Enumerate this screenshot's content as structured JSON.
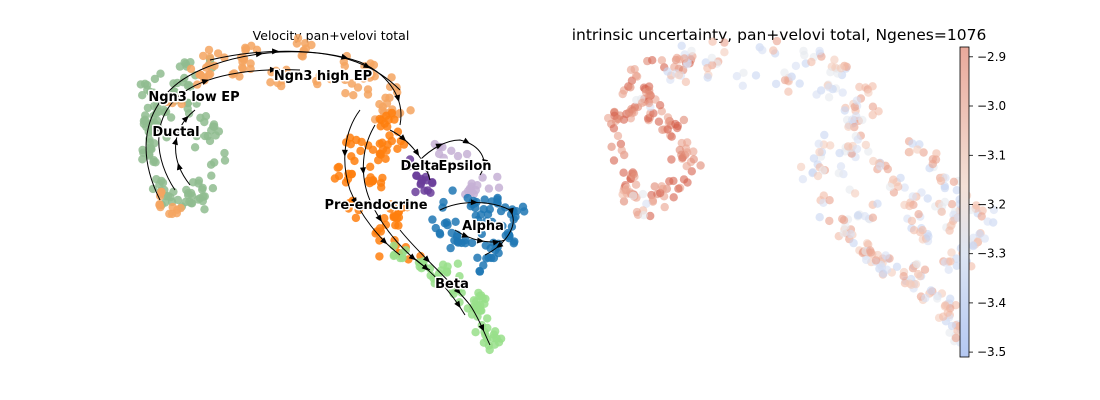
{
  "chart_data": [
    {
      "type": "scatter",
      "title": "Velocity pan+velovi total",
      "xlabel": "",
      "ylabel": "",
      "grid": false,
      "legend": "on data",
      "clusters": [
        {
          "name": "Ngn3 low EP",
          "color": "#8fbc8f"
        },
        {
          "name": "Ductal",
          "color": "#8fbc8f"
        },
        {
          "name": "Ngn3 high EP",
          "color": "#f4a460"
        },
        {
          "name": "Pre-endocrine",
          "color": "#ff7f0e"
        },
        {
          "name": "Delta",
          "color": "#6a3d9a"
        },
        {
          "name": "Epsilon",
          "color": "#c5b0d5"
        },
        {
          "name": "Alpha",
          "color": "#1f77b4"
        },
        {
          "name": "Beta",
          "color": "#98df8a"
        }
      ],
      "labels": [
        {
          "text": "Ngn3 low EP"
        },
        {
          "text": "Ductal"
        },
        {
          "text": "Ngn3 high EP"
        },
        {
          "text": "Pre-endocrine"
        },
        {
          "text": "Delta"
        },
        {
          "text": "Epsilon"
        },
        {
          "text": "Alpha"
        },
        {
          "text": "Beta"
        }
      ]
    },
    {
      "type": "scatter",
      "title": "intrinsic uncertainty, pan+velovi total, Ngenes=1076",
      "xlabel": "",
      "ylabel": "",
      "grid": false,
      "colormap": "coolwarm",
      "colorbar": {
        "vmin": -3.51,
        "vmax": -2.88,
        "ticks": [
          "−2.9",
          "−3.0",
          "−3.1",
          "−3.2",
          "−3.3",
          "−3.4",
          "−3.5"
        ],
        "tick_values": [
          -2.9,
          -3.0,
          -3.1,
          -3.2,
          -3.3,
          -3.4,
          -3.5
        ]
      }
    }
  ]
}
